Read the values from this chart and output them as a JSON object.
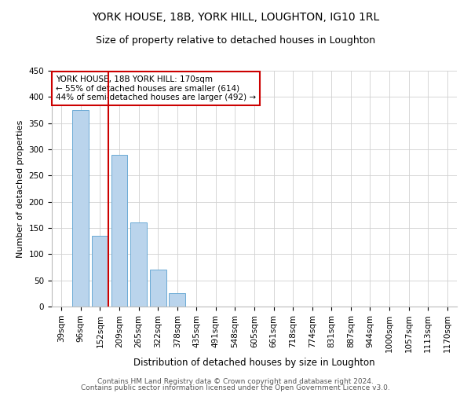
{
  "title": "YORK HOUSE, 18B, YORK HILL, LOUGHTON, IG10 1RL",
  "subtitle": "Size of property relative to detached houses in Loughton",
  "xlabel": "Distribution of detached houses by size in Loughton",
  "ylabel": "Number of detached properties",
  "categories": [
    "39sqm",
    "96sqm",
    "152sqm",
    "209sqm",
    "265sqm",
    "322sqm",
    "378sqm",
    "435sqm",
    "491sqm",
    "548sqm",
    "605sqm",
    "661sqm",
    "718sqm",
    "774sqm",
    "831sqm",
    "887sqm",
    "944sqm",
    "1000sqm",
    "1057sqm",
    "1113sqm",
    "1170sqm"
  ],
  "values": [
    0,
    375,
    135,
    290,
    160,
    70,
    25,
    0,
    0,
    0,
    0,
    0,
    0,
    0,
    0,
    0,
    0,
    0,
    0,
    0,
    0
  ],
  "bar_color": "#bad4ec",
  "bar_edge_color": "#6aaad4",
  "grid_color": "#d0d0d0",
  "background_color": "#ffffff",
  "annotation_line1": "YORK HOUSE, 18B YORK HILL: 170sqm",
  "annotation_line2": "← 55% of detached houses are smaller (614)",
  "annotation_line3": "44% of semi-detached houses are larger (492) →",
  "annotation_box_color": "#ffffff",
  "annotation_box_edge_color": "#cc0000",
  "redline_bar_index": 2,
  "ylim": [
    0,
    450
  ],
  "yticks": [
    0,
    50,
    100,
    150,
    200,
    250,
    300,
    350,
    400,
    450
  ],
  "footnote_line1": "Contains HM Land Registry data © Crown copyright and database right 2024.",
  "footnote_line2": "Contains public sector information licensed under the Open Government Licence v3.0.",
  "title_fontsize": 10,
  "subtitle_fontsize": 9,
  "xlabel_fontsize": 8.5,
  "ylabel_fontsize": 8,
  "tick_fontsize": 7.5,
  "annot_fontsize": 7.5,
  "footnote_fontsize": 6.5
}
